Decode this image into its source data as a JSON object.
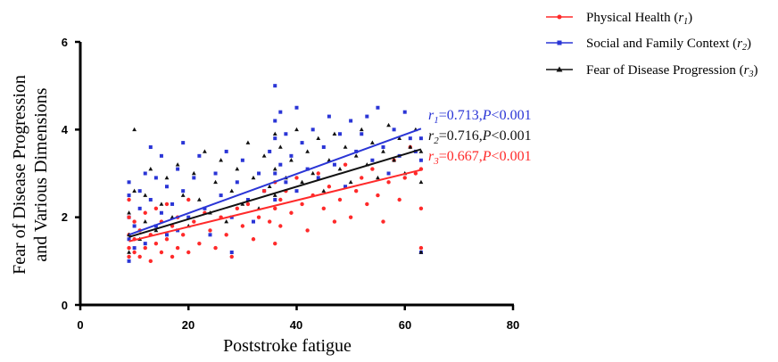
{
  "chart_data": {
    "type": "scatter",
    "xlabel": "Poststroke fatigue",
    "ylabel_line1": "Fear of Disease Progression",
    "ylabel_line2": "and Various Dimensions",
    "xlim": [
      0,
      80
    ],
    "ylim": [
      0,
      6
    ],
    "x_ticks": [
      "0",
      "20",
      "40",
      "60",
      "80"
    ],
    "y_ticks": [
      "0",
      "2",
      "4",
      "6"
    ],
    "grid": false,
    "legend_position": "top-right",
    "series": [
      {
        "name_main": "Physical Health",
        "name_sub": "1",
        "color": "#ff2a2a",
        "marker": "circle",
        "fit": {
          "x": [
            9,
            63
          ],
          "y": [
            1.45,
            3.08
          ]
        },
        "annotation": {
          "r_label": "r",
          "r_sub": "3",
          "text": "=0.667,",
          "p_label": "P",
          "p_text": "<0.001"
        },
        "points": [
          [
            9,
            1.1
          ],
          [
            9,
            1.3
          ],
          [
            9,
            1.6
          ],
          [
            9,
            2.0
          ],
          [
            9,
            2.4
          ],
          [
            10,
            1.2
          ],
          [
            10,
            1.5
          ],
          [
            10,
            1.9
          ],
          [
            11,
            1.1
          ],
          [
            11,
            1.7
          ],
          [
            12,
            1.3
          ],
          [
            12,
            2.1
          ],
          [
            13,
            1.0
          ],
          [
            13,
            1.6
          ],
          [
            14,
            1.4
          ],
          [
            14,
            2.2
          ],
          [
            15,
            1.2
          ],
          [
            15,
            1.9
          ],
          [
            16,
            1.5
          ],
          [
            16,
            2.3
          ],
          [
            17,
            1.1
          ],
          [
            17,
            1.8
          ],
          [
            18,
            1.3
          ],
          [
            18,
            2.0
          ],
          [
            19,
            1.6
          ],
          [
            20,
            1.2
          ],
          [
            20,
            2.4
          ],
          [
            21,
            1.9
          ],
          [
            22,
            1.4
          ],
          [
            23,
            2.1
          ],
          [
            24,
            1.7
          ],
          [
            25,
            1.3
          ],
          [
            26,
            2.0
          ],
          [
            27,
            1.6
          ],
          [
            28,
            1.1
          ],
          [
            29,
            2.2
          ],
          [
            30,
            1.8
          ],
          [
            31,
            2.3
          ],
          [
            32,
            1.5
          ],
          [
            33,
            2.0
          ],
          [
            34,
            2.6
          ],
          [
            35,
            1.9
          ],
          [
            36,
            1.4
          ],
          [
            36,
            2.2
          ],
          [
            36,
            2.8
          ],
          [
            37,
            2.4
          ],
          [
            37,
            1.8
          ],
          [
            38,
            2.6
          ],
          [
            39,
            2.1
          ],
          [
            40,
            2.9
          ],
          [
            41,
            2.3
          ],
          [
            42,
            1.7
          ],
          [
            43,
            2.5
          ],
          [
            44,
            3.0
          ],
          [
            45,
            2.2
          ],
          [
            46,
            2.7
          ],
          [
            47,
            1.9
          ],
          [
            48,
            2.4
          ],
          [
            49,
            3.2
          ],
          [
            50,
            2.0
          ],
          [
            51,
            2.6
          ],
          [
            52,
            2.9
          ],
          [
            53,
            2.3
          ],
          [
            54,
            3.1
          ],
          [
            55,
            2.5
          ],
          [
            56,
            1.9
          ],
          [
            57,
            2.8
          ],
          [
            58,
            3.3
          ],
          [
            59,
            2.4
          ],
          [
            60,
            2.9
          ],
          [
            61,
            3.6
          ],
          [
            62,
            3.0
          ],
          [
            63,
            2.2
          ],
          [
            63,
            1.3
          ],
          [
            63,
            3.1
          ]
        ]
      },
      {
        "name_main": "Social and Family Context",
        "name_sub": "2",
        "color": "#2a35d6",
        "marker": "square",
        "fit": {
          "x": [
            9,
            63
          ],
          "y": [
            1.6,
            4.02
          ]
        },
        "annotation": {
          "r_label": "r",
          "r_sub": "1",
          "text": "=0.713,",
          "p_label": "P",
          "p_text": "<0.001"
        },
        "points": [
          [
            9,
            1.0
          ],
          [
            9,
            1.5
          ],
          [
            9,
            2.0
          ],
          [
            9,
            2.5
          ],
          [
            9,
            2.8
          ],
          [
            10,
            1.3
          ],
          [
            10,
            1.8
          ],
          [
            11,
            2.2
          ],
          [
            11,
            2.6
          ],
          [
            12,
            1.4
          ],
          [
            12,
            3.0
          ],
          [
            13,
            2.4
          ],
          [
            13,
            3.6
          ],
          [
            14,
            1.8
          ],
          [
            14,
            2.9
          ],
          [
            15,
            2.1
          ],
          [
            15,
            3.4
          ],
          [
            16,
            1.6
          ],
          [
            16,
            2.7
          ],
          [
            17,
            2.3
          ],
          [
            18,
            3.1
          ],
          [
            18,
            1.7
          ],
          [
            19,
            2.6
          ],
          [
            19,
            3.7
          ],
          [
            20,
            2.0
          ],
          [
            21,
            2.9
          ],
          [
            22,
            3.4
          ],
          [
            23,
            2.2
          ],
          [
            24,
            1.6
          ],
          [
            25,
            3.0
          ],
          [
            26,
            2.5
          ],
          [
            27,
            3.5
          ],
          [
            28,
            2.0
          ],
          [
            28,
            1.2
          ],
          [
            29,
            2.8
          ],
          [
            30,
            3.3
          ],
          [
            31,
            2.4
          ],
          [
            32,
            1.9
          ],
          [
            33,
            3.0
          ],
          [
            34,
            2.6
          ],
          [
            35,
            3.5
          ],
          [
            36,
            5.0
          ],
          [
            36,
            4.2
          ],
          [
            36,
            3.8
          ],
          [
            36,
            3.0
          ],
          [
            36,
            2.4
          ],
          [
            37,
            4.4
          ],
          [
            37,
            3.2
          ],
          [
            38,
            2.8
          ],
          [
            38,
            3.9
          ],
          [
            39,
            3.4
          ],
          [
            40,
            4.5
          ],
          [
            40,
            2.6
          ],
          [
            41,
            3.7
          ],
          [
            42,
            3.1
          ],
          [
            43,
            4.0
          ],
          [
            44,
            2.9
          ],
          [
            45,
            3.6
          ],
          [
            46,
            4.3
          ],
          [
            47,
            3.2
          ],
          [
            48,
            3.9
          ],
          [
            49,
            2.7
          ],
          [
            50,
            4.2
          ],
          [
            51,
            3.5
          ],
          [
            52,
            3.9
          ],
          [
            53,
            4.3
          ],
          [
            54,
            3.3
          ],
          [
            55,
            4.5
          ],
          [
            56,
            3.6
          ],
          [
            57,
            3.0
          ],
          [
            58,
            4.0
          ],
          [
            59,
            3.4
          ],
          [
            60,
            4.4
          ],
          [
            61,
            3.8
          ],
          [
            62,
            3.5
          ],
          [
            63,
            3.8
          ],
          [
            63,
            3.3
          ],
          [
            63,
            1.2
          ]
        ]
      },
      {
        "name_main": "Fear of Disease Progression",
        "name_sub": "3",
        "color": "#111111",
        "marker": "triangle",
        "fit": {
          "x": [
            9,
            63
          ],
          "y": [
            1.55,
            3.55
          ]
        },
        "annotation": {
          "r_label": "r",
          "r_sub": "2",
          "text": "=0.716,",
          "p_label": "P",
          "p_text": "<0.001"
        },
        "points": [
          [
            9,
            1.2
          ],
          [
            9,
            1.6
          ],
          [
            9,
            2.1
          ],
          [
            10,
            2.6
          ],
          [
            10,
            4.0
          ],
          [
            11,
            1.5
          ],
          [
            12,
            1.9
          ],
          [
            12,
            2.5
          ],
          [
            13,
            3.1
          ],
          [
            14,
            1.7
          ],
          [
            15,
            2.3
          ],
          [
            16,
            2.9
          ],
          [
            17,
            2.0
          ],
          [
            18,
            3.2
          ],
          [
            19,
            2.5
          ],
          [
            20,
            1.8
          ],
          [
            21,
            3.0
          ],
          [
            22,
            2.4
          ],
          [
            23,
            3.5
          ],
          [
            24,
            2.1
          ],
          [
            25,
            2.8
          ],
          [
            26,
            3.3
          ],
          [
            27,
            1.9
          ],
          [
            28,
            2.6
          ],
          [
            29,
            3.1
          ],
          [
            30,
            2.3
          ],
          [
            31,
            3.7
          ],
          [
            32,
            2.9
          ],
          [
            33,
            2.2
          ],
          [
            34,
            3.4
          ],
          [
            35,
            2.7
          ],
          [
            36,
            3.1
          ],
          [
            36,
            3.9
          ],
          [
            36,
            2.5
          ],
          [
            37,
            3.6
          ],
          [
            38,
            2.9
          ],
          [
            39,
            3.3
          ],
          [
            40,
            4.0
          ],
          [
            41,
            2.8
          ],
          [
            42,
            3.5
          ],
          [
            43,
            3.0
          ],
          [
            44,
            3.8
          ],
          [
            45,
            2.6
          ],
          [
            46,
            3.3
          ],
          [
            47,
            3.9
          ],
          [
            48,
            3.1
          ],
          [
            49,
            3.6
          ],
          [
            50,
            2.8
          ],
          [
            51,
            3.4
          ],
          [
            52,
            4.0
          ],
          [
            53,
            3.2
          ],
          [
            54,
            3.7
          ],
          [
            55,
            2.9
          ],
          [
            56,
            3.5
          ],
          [
            57,
            4.1
          ],
          [
            58,
            3.3
          ],
          [
            59,
            3.8
          ],
          [
            60,
            3.0
          ],
          [
            61,
            3.6
          ],
          [
            62,
            4.0
          ],
          [
            63,
            2.8
          ],
          [
            63,
            3.5
          ],
          [
            63,
            1.2
          ]
        ]
      }
    ]
  }
}
